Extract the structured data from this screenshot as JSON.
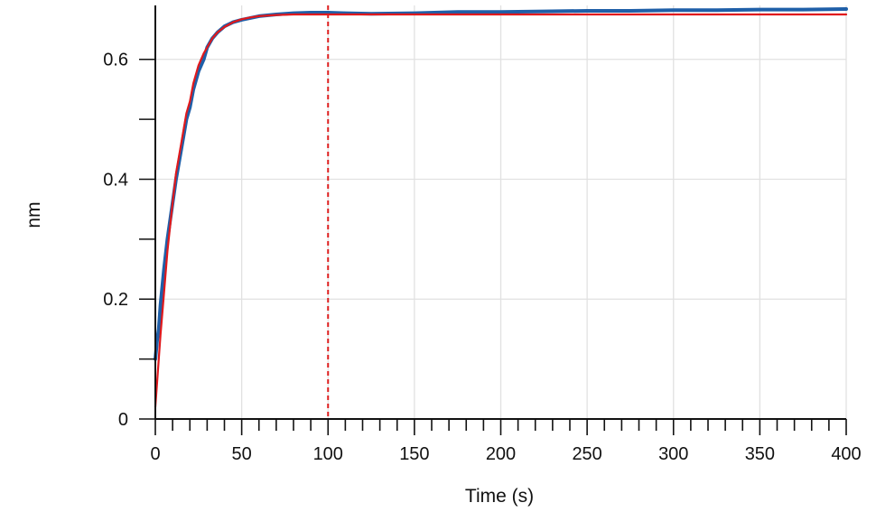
{
  "chart_data": {
    "type": "line",
    "title": "",
    "xlabel": "Time (s)",
    "ylabel": "nm",
    "xlim": [
      0,
      400
    ],
    "ylim": [
      0,
      0.69
    ],
    "x_ticks": [
      0,
      50,
      100,
      150,
      200,
      250,
      300,
      350,
      400
    ],
    "x_tick_labels": [
      "0",
      "50",
      "100",
      "150",
      "200",
      "250",
      "300",
      "350",
      "400"
    ],
    "y_ticks": [
      0,
      0.2,
      0.4,
      0.6
    ],
    "y_tick_labels": [
      "0",
      "0.2",
      "0.4",
      "0.6"
    ],
    "grid": true,
    "legend": "none",
    "vertical_markers": [
      {
        "x": 0,
        "color": "#dd1f1f",
        "style": "dashed"
      },
      {
        "x": 100,
        "color": "#dd1f1f",
        "style": "dashed"
      }
    ],
    "series": [
      {
        "color": "#1f5fa8",
        "x": [
          0,
          1,
          2,
          3,
          5,
          7,
          10,
          12,
          15,
          18,
          20,
          22,
          25,
          28,
          30,
          33,
          36,
          40,
          45,
          50,
          55,
          60,
          70,
          80,
          90,
          100,
          110,
          125,
          150,
          175,
          200,
          225,
          250,
          275,
          300,
          325,
          350,
          375,
          400
        ],
        "y": [
          0.1,
          0.13,
          0.15,
          0.19,
          0.25,
          0.3,
          0.36,
          0.4,
          0.45,
          0.5,
          0.52,
          0.55,
          0.58,
          0.6,
          0.62,
          0.635,
          0.645,
          0.655,
          0.662,
          0.666,
          0.669,
          0.672,
          0.675,
          0.677,
          0.678,
          0.678,
          0.677,
          0.676,
          0.677,
          0.679,
          0.679,
          0.68,
          0.681,
          0.681,
          0.682,
          0.682,
          0.683,
          0.683,
          0.684
        ]
      },
      {
        "color": "#e0191c",
        "x": [
          0,
          1,
          2,
          3,
          5,
          7,
          10,
          12,
          15,
          18,
          20,
          22,
          25,
          28,
          30,
          33,
          36,
          40,
          45,
          50,
          55,
          60,
          70,
          80,
          90,
          100,
          125,
          150,
          175,
          200,
          250,
          300,
          350,
          400
        ],
        "y": [
          0.02,
          0.06,
          0.1,
          0.14,
          0.21,
          0.28,
          0.36,
          0.41,
          0.46,
          0.51,
          0.53,
          0.56,
          0.59,
          0.61,
          0.62,
          0.635,
          0.645,
          0.654,
          0.662,
          0.667,
          0.67,
          0.672,
          0.674,
          0.675,
          0.675,
          0.675,
          0.675,
          0.675,
          0.675,
          0.675,
          0.675,
          0.675,
          0.675,
          0.675
        ]
      }
    ]
  }
}
